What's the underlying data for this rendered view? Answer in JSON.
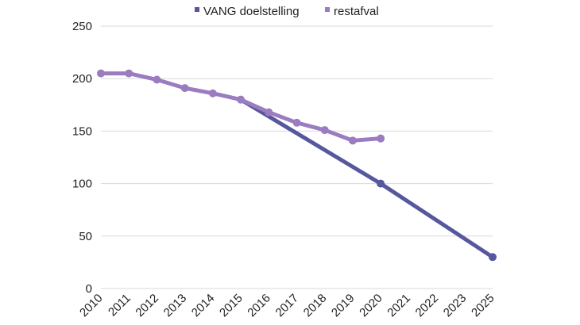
{
  "chart_data": {
    "type": "line",
    "x": [
      "2010",
      "2011",
      "2012",
      "2013",
      "2014",
      "2015",
      "2016",
      "2017",
      "2018",
      "2019",
      "2020",
      "2021",
      "2022",
      "2023",
      "2025"
    ],
    "ylim": [
      0,
      250
    ],
    "yticks": [
      0,
      50,
      100,
      150,
      200,
      250
    ],
    "grid": "horizontal",
    "legend_position": "top",
    "series": [
      {
        "name": "VANG doelstelling",
        "color": "#57579e",
        "points": [
          {
            "x": "2015",
            "y": 180
          },
          {
            "x": "2020",
            "y": 100
          },
          {
            "x": "2025",
            "y": 30
          }
        ],
        "markers": [
          "2020",
          "2025"
        ]
      },
      {
        "name": "restafval",
        "color": "#9b7cc0",
        "points": [
          {
            "x": "2010",
            "y": 205
          },
          {
            "x": "2011",
            "y": 205
          },
          {
            "x": "2012",
            "y": 199
          },
          {
            "x": "2013",
            "y": 191
          },
          {
            "x": "2014",
            "y": 186
          },
          {
            "x": "2015",
            "y": 180
          },
          {
            "x": "2016",
            "y": 168
          },
          {
            "x": "2017",
            "y": 158
          },
          {
            "x": "2018",
            "y": 151
          },
          {
            "x": "2019",
            "y": 141
          },
          {
            "x": "2020",
            "y": 143
          }
        ],
        "markers": [
          "2010",
          "2011",
          "2012",
          "2013",
          "2014",
          "2015",
          "2016",
          "2017",
          "2018",
          "2019",
          "2020"
        ]
      }
    ]
  }
}
